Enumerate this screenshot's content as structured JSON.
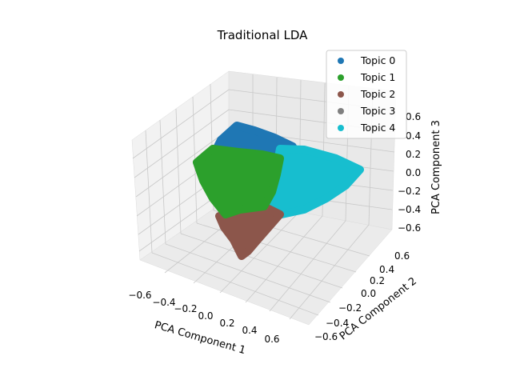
{
  "chart_data": {
    "type": "scatter",
    "projection": "3d",
    "title": "Traditional LDA",
    "xlabel": "PCA Component 1",
    "ylabel": "PCA Component 2",
    "zlabel": "PCA Component 3",
    "xticks": [
      "−0.6",
      "−0.4",
      "−0.2",
      "0.0",
      "0.2",
      "0.4",
      "0.6"
    ],
    "yticks": [
      "−0.6",
      "−0.4",
      "−0.2",
      "0.0",
      "0.2",
      "0.4",
      "0.6"
    ],
    "zticks": [
      "−0.6",
      "−0.4",
      "−0.2",
      "0.0",
      "0.2",
      "0.4",
      "0.6"
    ],
    "xlim": [
      -0.6,
      0.6
    ],
    "ylim": [
      -0.6,
      0.6
    ],
    "zlim": [
      -0.6,
      0.6
    ],
    "grid": true,
    "legend_position": "top-right",
    "series": [
      {
        "name": "Topic 0",
        "color": "#1f77b4"
      },
      {
        "name": "Topic 1",
        "color": "#2ca02c"
      },
      {
        "name": "Topic 2",
        "color": "#8c564b"
      },
      {
        "name": "Topic 3",
        "color": "#7f7f7f"
      },
      {
        "name": "Topic 4",
        "color": "#17becf"
      }
    ]
  }
}
